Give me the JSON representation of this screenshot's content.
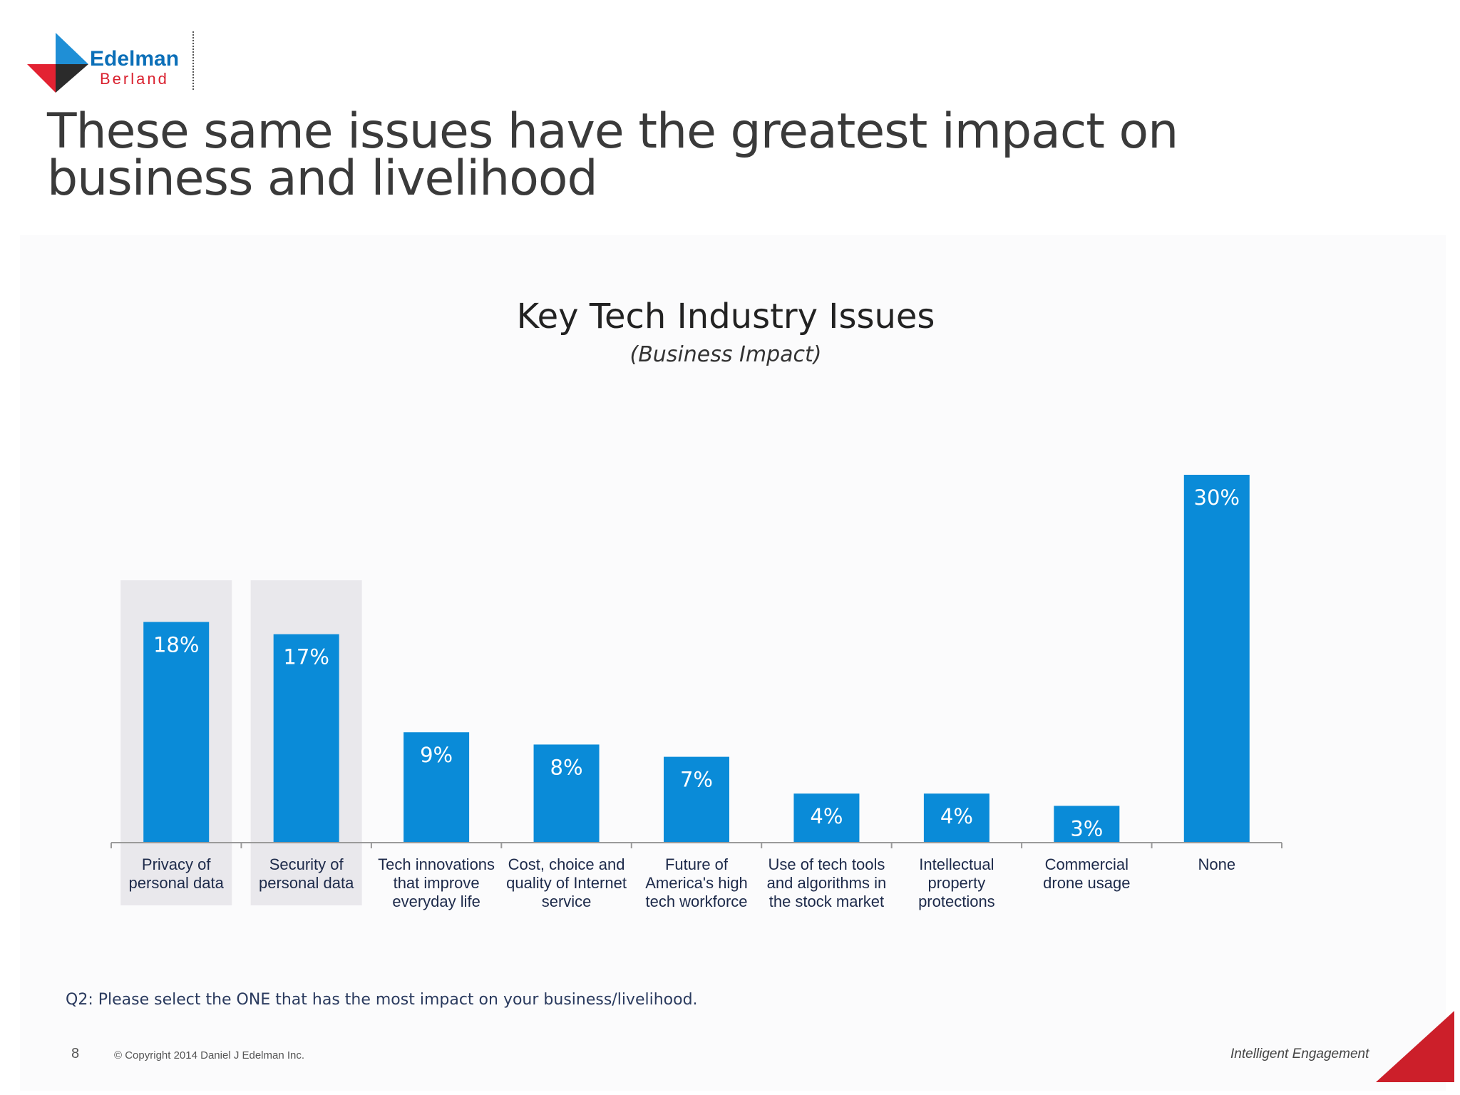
{
  "brand": {
    "name_line1": "Edelman",
    "name_line2": "Berland",
    "colors": {
      "blue": "#0b6fb8",
      "red": "#d9202e",
      "dark": "#2b2b2b"
    }
  },
  "slide": {
    "title_line1": "These same issues have the greatest impact on",
    "title_line2": "business and livelihood",
    "question": "Q2: Please select the ONE that has the most impact on your business/livelihood.",
    "page_number": "8",
    "copyright": "© Copyright 2014 Daniel J Edelman Inc.",
    "tagline": "Intelligent Engagement"
  },
  "chart_data": {
    "type": "bar",
    "title": "Key Tech Industry Issues",
    "subtitle": "(Business Impact)",
    "categories": [
      [
        "Privacy of",
        "personal data"
      ],
      [
        "Security of",
        "personal data"
      ],
      [
        "Tech innovations",
        "that improve",
        "everyday life"
      ],
      [
        "Cost, choice and",
        "quality of Internet",
        "service"
      ],
      [
        "Future of",
        "America's high",
        "tech workforce"
      ],
      [
        "Use of tech tools",
        "and algorithms in",
        "the stock market"
      ],
      [
        "Intellectual",
        "property",
        "protections"
      ],
      [
        "Commercial",
        "drone usage"
      ],
      [
        "None"
      ]
    ],
    "values": [
      18,
      17,
      9,
      8,
      7,
      4,
      4,
      3,
      30
    ],
    "data_labels": [
      "18%",
      "17%",
      "9%",
      "8%",
      "7%",
      "4%",
      "4%",
      "3%",
      "30%"
    ],
    "highlighted": [
      0,
      1
    ],
    "ylim": [
      0,
      30
    ],
    "grid": false,
    "bar_color": "#0a8bd8",
    "highlight_color": "#e9e8ec"
  }
}
